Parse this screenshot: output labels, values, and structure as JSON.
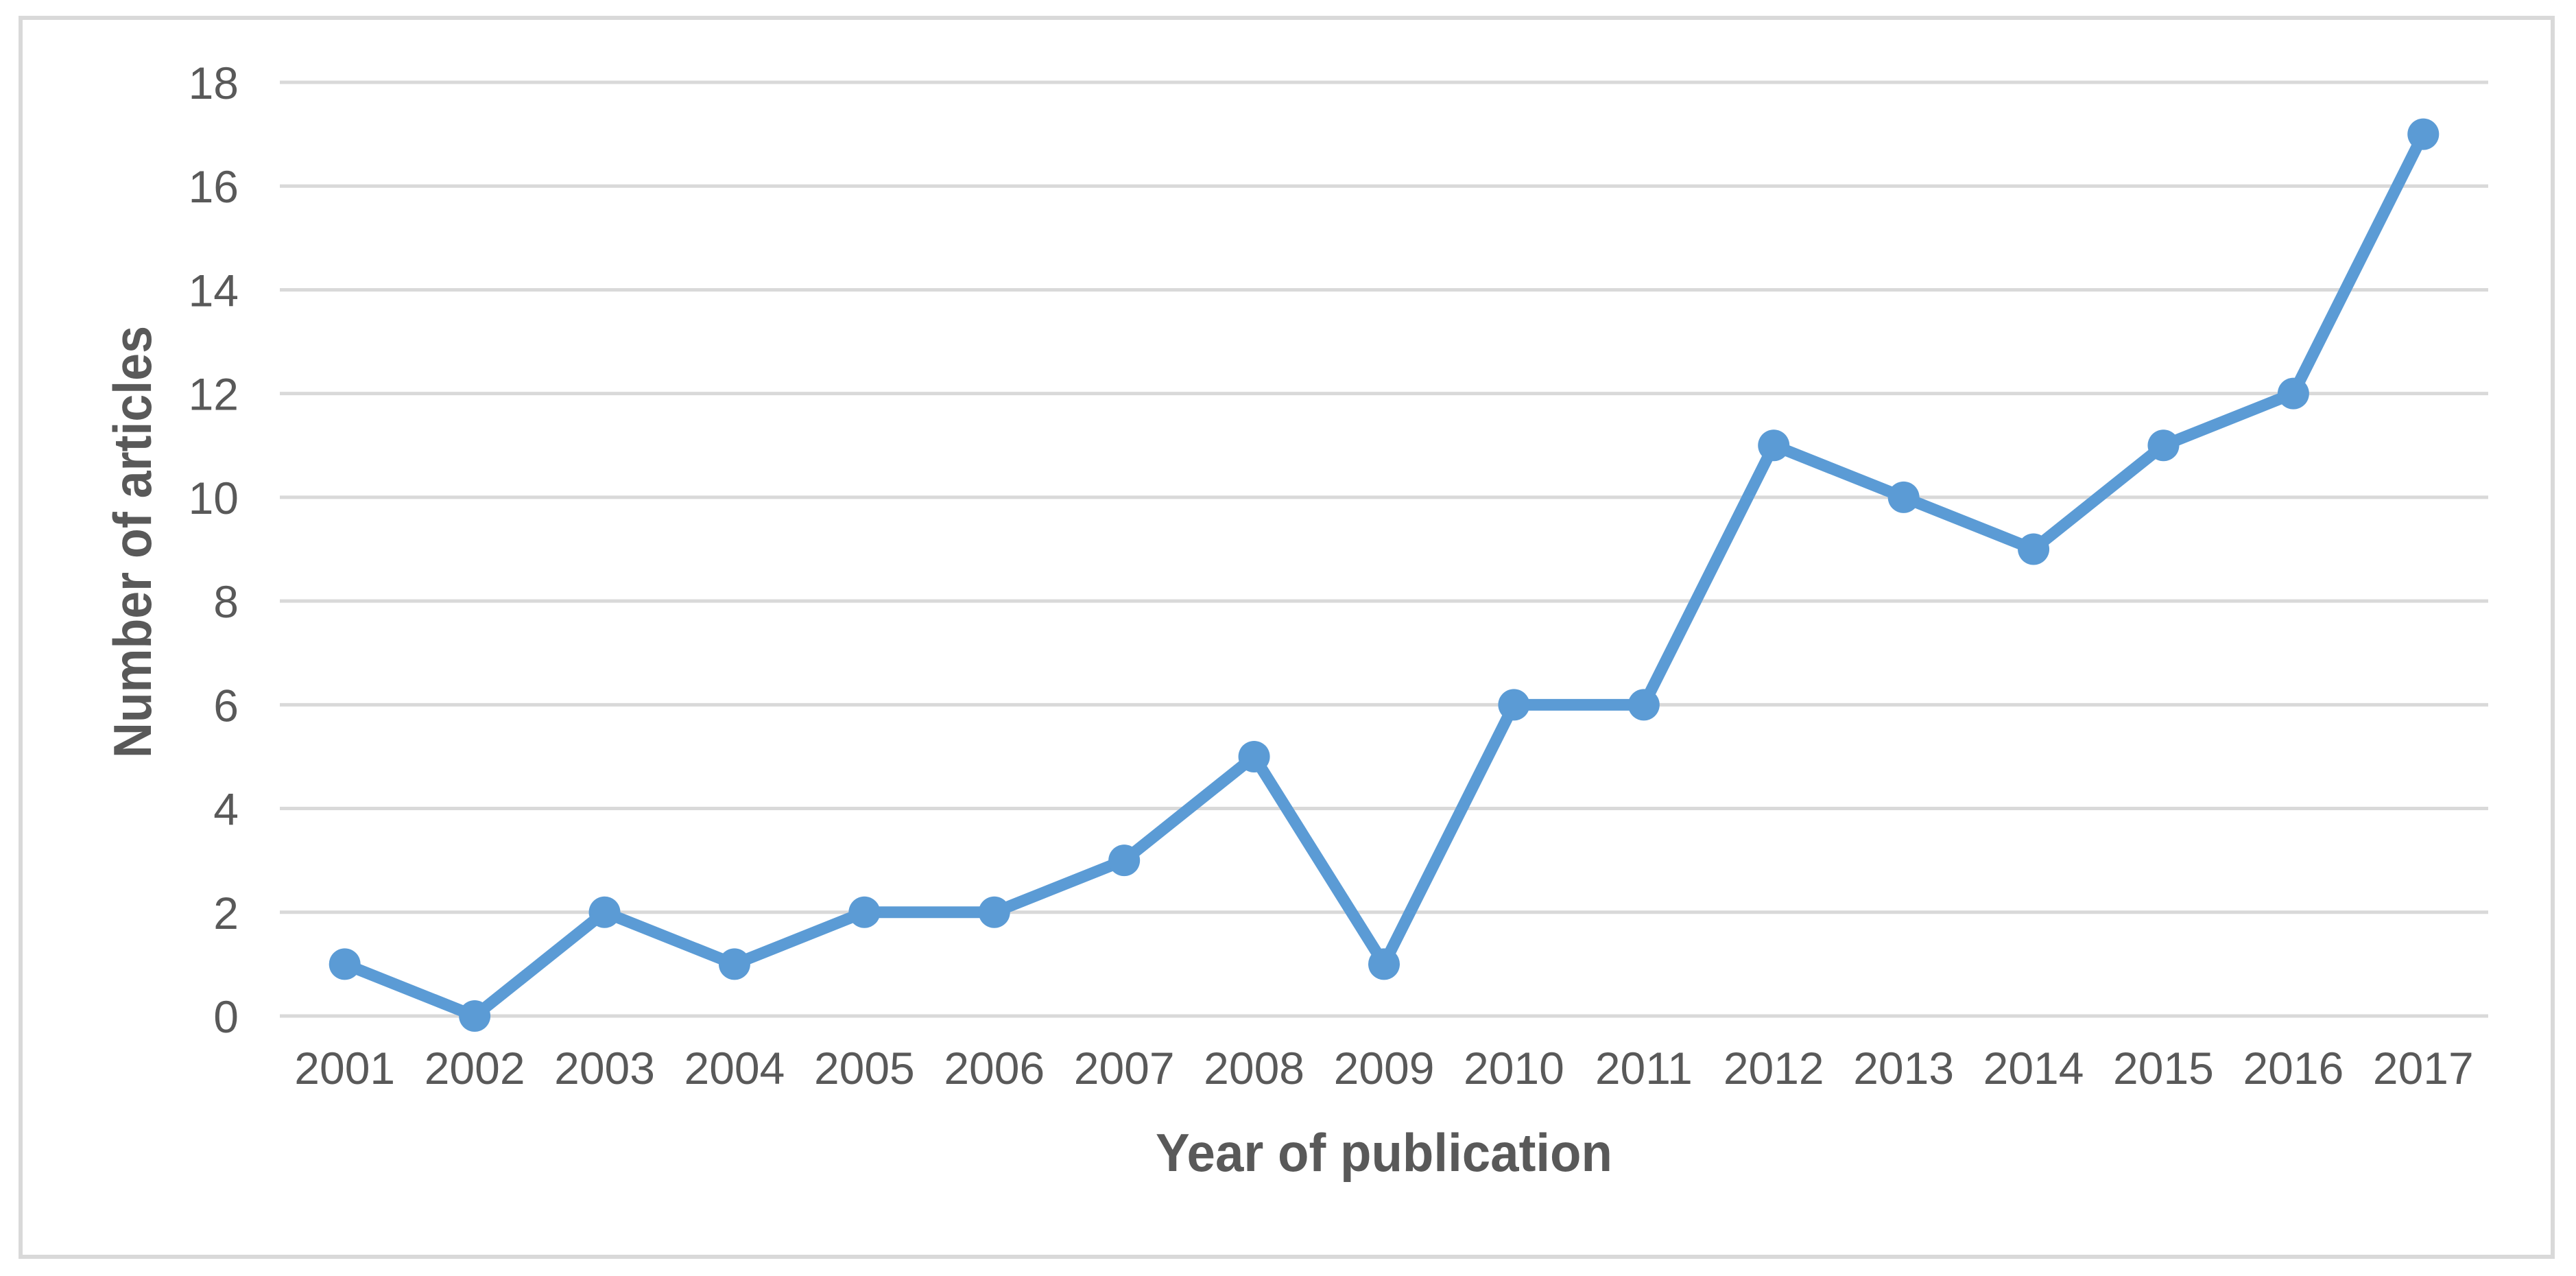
{
  "chart_data": {
    "type": "line",
    "title": "",
    "xlabel": "Year of publication",
    "ylabel": "Number of articles",
    "categories": [
      "2001",
      "2002",
      "2003",
      "2004",
      "2005",
      "2006",
      "2007",
      "2008",
      "2009",
      "2010",
      "2011",
      "2012",
      "2013",
      "2014",
      "2015",
      "2016",
      "2017"
    ],
    "series": [
      {
        "name": "Number of articles",
        "values": [
          1,
          0,
          2,
          1,
          2,
          2,
          3,
          5,
          1,
          6,
          6,
          11,
          10,
          9,
          11,
          12,
          17
        ]
      }
    ],
    "ylim": [
      0,
      18
    ],
    "ytick_step": 2,
    "yticks": [
      0,
      2,
      4,
      6,
      8,
      10,
      12,
      14,
      16,
      18
    ],
    "grid": "horizontal-only",
    "legend_position": "none",
    "marker": "circle",
    "colors": {
      "line": "#5B9BD5",
      "marker": "#5B9BD5",
      "gridline": "#D9D9D9",
      "border": "#D9D9D9",
      "tick_text": "#595959",
      "axis_title_text": "#595959",
      "background": "#FFFFFF"
    }
  }
}
